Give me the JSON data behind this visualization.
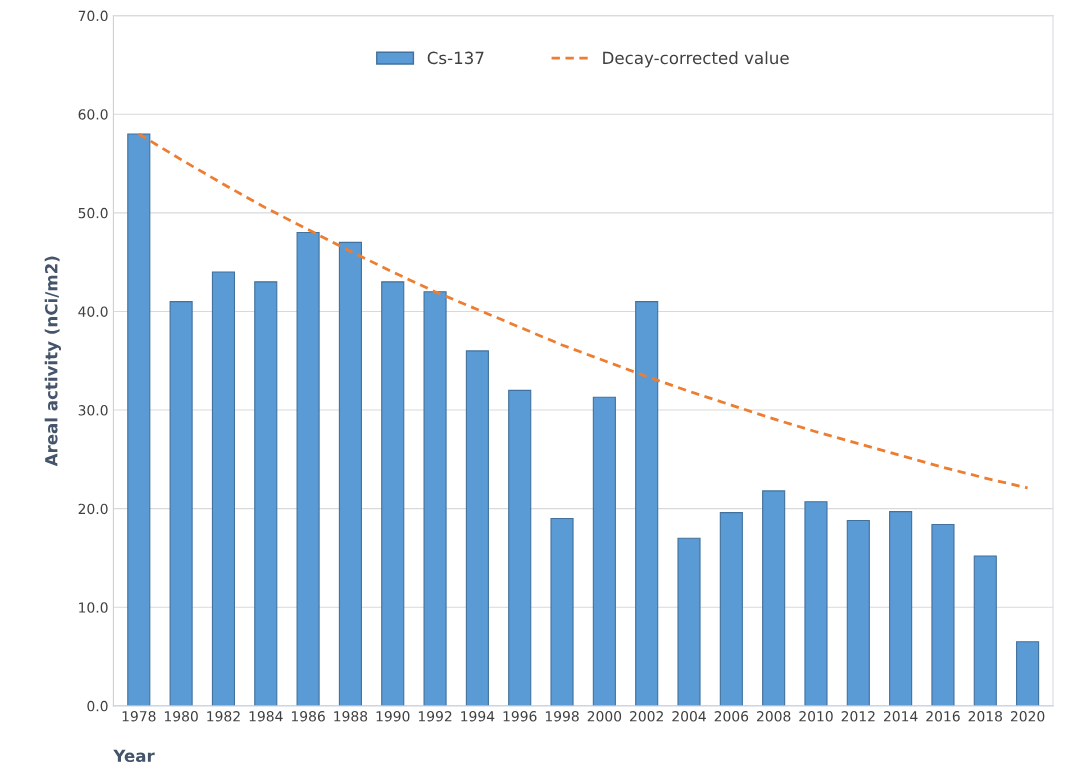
{
  "chart_data": {
    "type": "bar",
    "xlabel": "Year",
    "ylabel": "Areal activity (nCi/m2)",
    "categories": [
      "1978",
      "1980",
      "1982",
      "1984",
      "1986",
      "1988",
      "1990",
      "1992",
      "1994",
      "1996",
      "1998",
      "2000",
      "2002",
      "2004",
      "2006",
      "2008",
      "2010",
      "2012",
      "2014",
      "2016",
      "2018",
      "2020"
    ],
    "series": [
      {
        "name": "Cs-137",
        "color": "#5b9bd5",
        "values": [
          58.0,
          41.0,
          44.0,
          43.0,
          48.0,
          47.0,
          43.0,
          42.0,
          36.0,
          32.0,
          19.0,
          31.3,
          41.0,
          17.0,
          19.6,
          21.8,
          20.7,
          18.8,
          19.7,
          18.4,
          15.2,
          6.5
        ]
      },
      {
        "name": "Decay-corrected value",
        "type": "line",
        "color": "#ed7d31",
        "line_style": "dashed",
        "values": [
          58.0,
          55.4,
          52.9,
          50.5,
          48.3,
          46.1,
          44.0,
          42.0,
          40.2,
          38.4,
          36.6,
          35.0,
          33.4,
          31.9,
          30.5,
          29.1,
          27.8,
          26.6,
          25.4,
          24.2,
          23.1,
          22.1
        ]
      }
    ],
    "ylim": [
      0,
      70
    ],
    "yticks": [
      {
        "value": 0,
        "label": "0.0"
      },
      {
        "value": 10,
        "label": "10.0"
      },
      {
        "value": 20,
        "label": "20.0"
      },
      {
        "value": 30,
        "label": "30.0"
      },
      {
        "value": 40,
        "label": "40.0"
      },
      {
        "value": 50,
        "label": "50.0"
      },
      {
        "value": 60,
        "label": "60.0"
      },
      {
        "value": 70,
        "label": "70.0"
      }
    ],
    "grid": "y",
    "legend": "top"
  }
}
